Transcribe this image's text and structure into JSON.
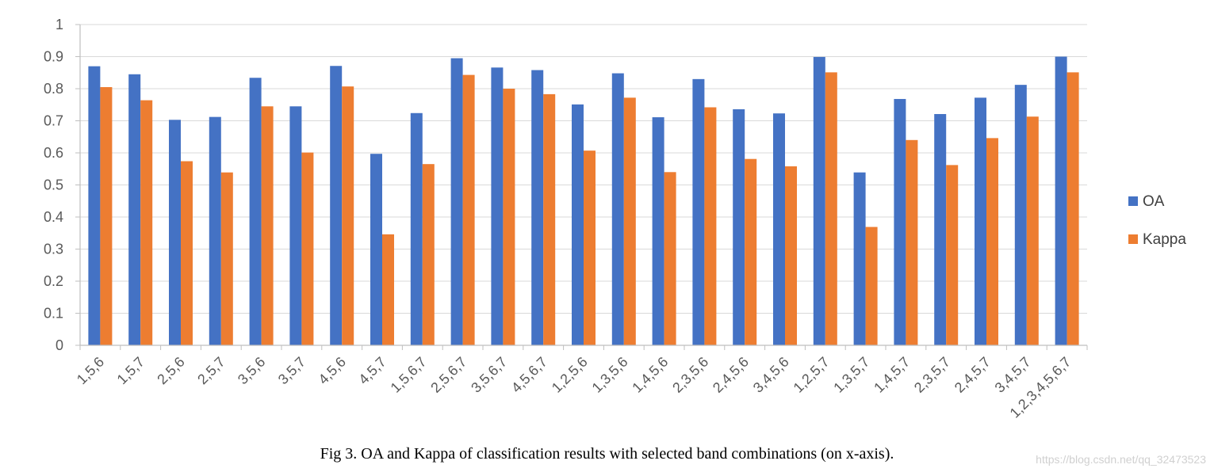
{
  "chart_data": {
    "type": "bar",
    "categories": [
      "1,5,6",
      "1,5,7",
      "2,5,6",
      "2,5,7",
      "3,5,6",
      "3,5,7",
      "4,5,6",
      "4,5,7",
      "1,5,6,7",
      "2,5,6,7",
      "3,5,6,7",
      "4,5,6,7",
      "1,2,5,6",
      "1,3,5,6",
      "1,4,5,6",
      "2,3,5,6",
      "2,4,5,6",
      "3,4,5,6",
      "1,2,5,7",
      "1,3,5,7",
      "1,4,5,7",
      "2,3,5,7",
      "2,4,5,7",
      "3,4,5,7",
      "1,2,3,4,5,6,7"
    ],
    "series": [
      {
        "name": "OA",
        "color": "#4472C4",
        "values": [
          0.87,
          0.845,
          0.703,
          0.712,
          0.834,
          0.745,
          0.871,
          0.597,
          0.724,
          0.895,
          0.866,
          0.858,
          0.751,
          0.848,
          0.711,
          0.83,
          0.736,
          0.723,
          0.899,
          0.539,
          0.768,
          0.721,
          0.772,
          0.812,
          0.9
        ]
      },
      {
        "name": "Kappa",
        "color": "#ED7D31",
        "values": [
          0.805,
          0.764,
          0.574,
          0.539,
          0.745,
          0.601,
          0.807,
          0.346,
          0.565,
          0.843,
          0.8,
          0.783,
          0.607,
          0.772,
          0.54,
          0.742,
          0.581,
          0.558,
          0.851,
          0.369,
          0.64,
          0.562,
          0.646,
          0.713,
          0.851
        ]
      }
    ],
    "ylim": [
      0,
      1
    ],
    "yticks": [
      "0",
      "0.1",
      "0.2",
      "0.3",
      "0.4",
      "0.5",
      "0.6",
      "0.7",
      "0.8",
      "0.9",
      "1"
    ],
    "grid": true,
    "legend_position": "right",
    "title": "",
    "xlabel": "",
    "ylabel": ""
  },
  "caption": "Fig 3. OA and Kappa of classification results with selected band combinations (on x-axis).",
  "watermark": "https://blog.csdn.net/qq_32473523"
}
